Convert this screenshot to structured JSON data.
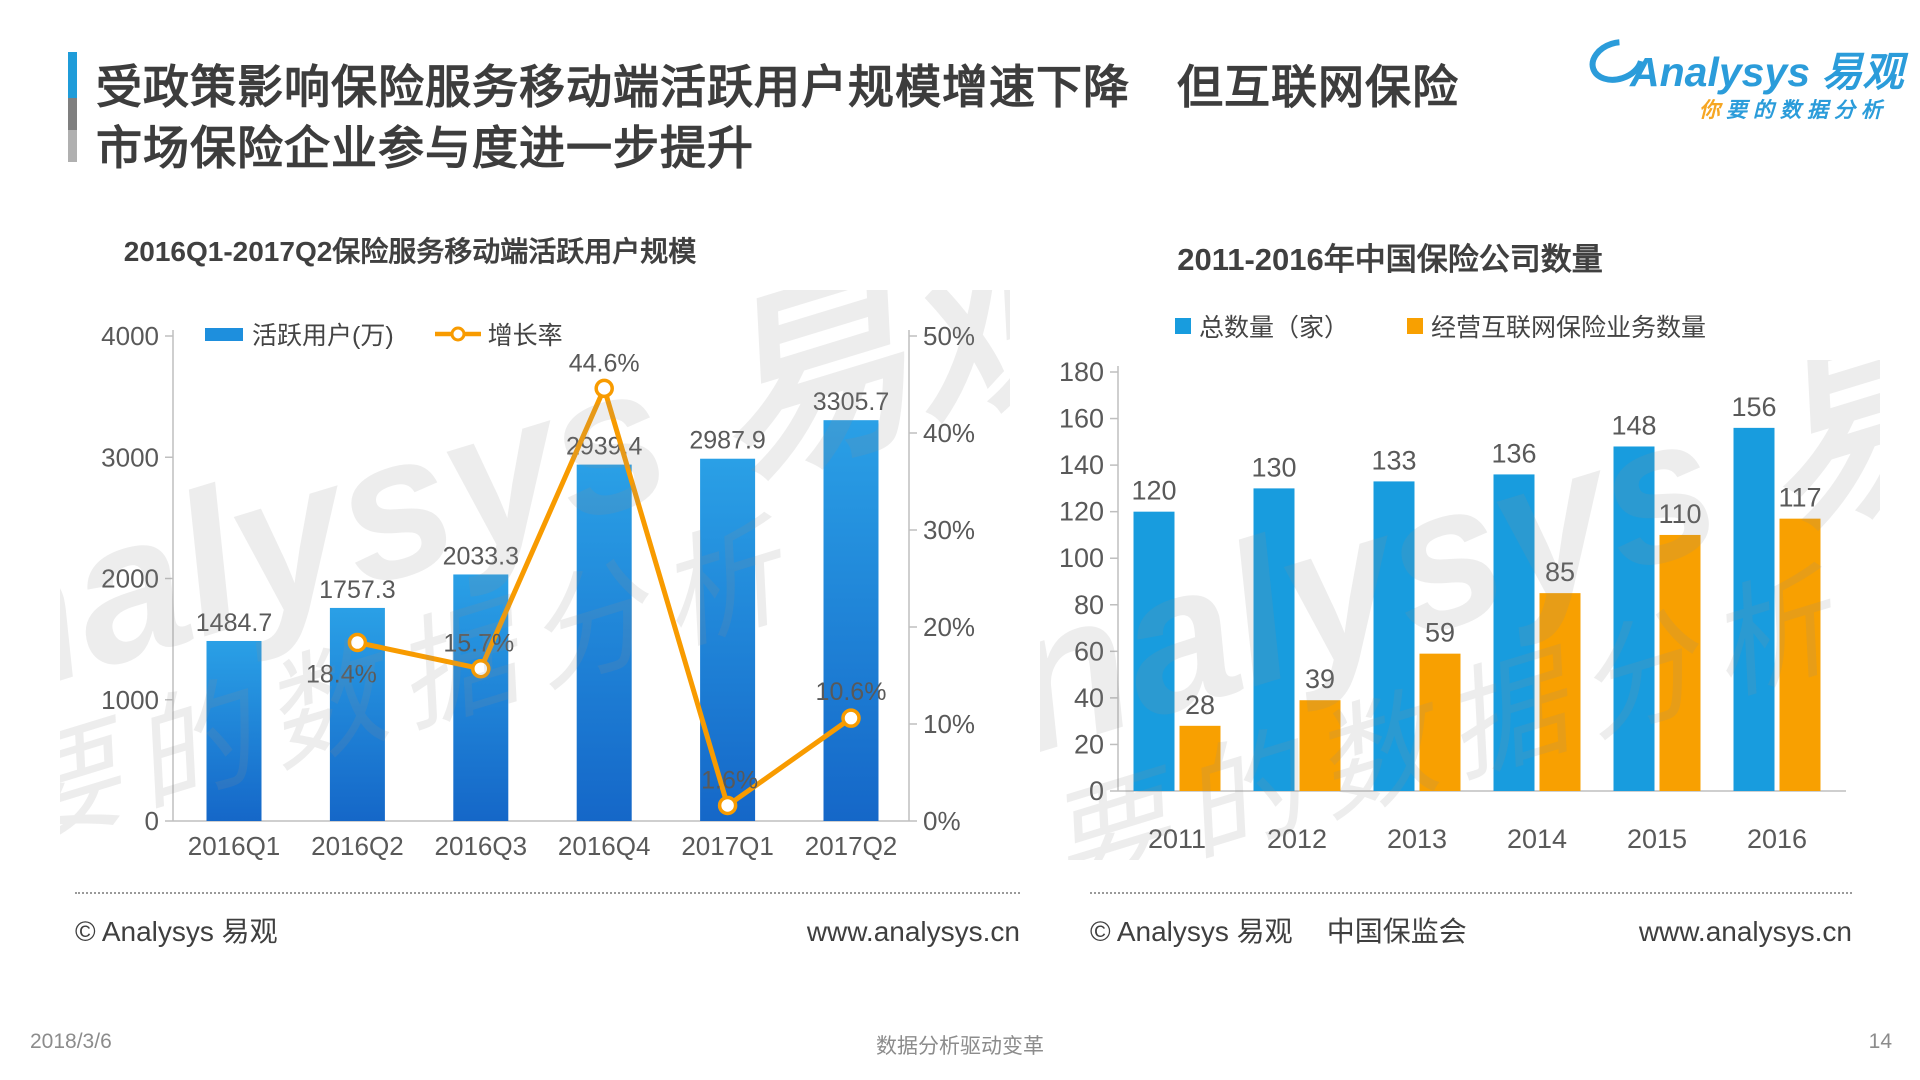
{
  "header": {
    "title_line1": "受政策影响保险服务移动端活跃用户规模增速下降　但互联网保险",
    "title_line2": "市场保险企业参与度进一步提升",
    "logo_brand": "Analysys 易观",
    "logo_tagline_first": "你",
    "logo_tagline_rest": "要的数据分析"
  },
  "watermark": {
    "line1": "Analysys 易观",
    "line2": "你要的数据分析"
  },
  "chart_data": [
    {
      "type": "bar",
      "title": "2016Q1-2017Q2保险服务移动端活跃用户规模",
      "categories": [
        "2016Q1",
        "2016Q2",
        "2016Q3",
        "2016Q4",
        "2017Q1",
        "2017Q2"
      ],
      "series": [
        {
          "name": "活跃用户(万)",
          "type": "bar",
          "values": [
            1484.7,
            1757.3,
            2033.3,
            2939.4,
            2987.9,
            3305.7
          ],
          "color": "#1E8FDD"
        },
        {
          "name": "增长率",
          "type": "line",
          "values": [
            null,
            18.4,
            15.7,
            44.6,
            1.6,
            10.6
          ],
          "unit": "%",
          "color": "#F89B00"
        }
      ],
      "left_axis": {
        "min": 0,
        "max": 4000,
        "ticks": [
          "0",
          "1000",
          "2000",
          "3000",
          "4000"
        ]
      },
      "right_axis": {
        "min": 0,
        "max": 50,
        "ticks": [
          "0%",
          "10%",
          "20%",
          "30%",
          "40%",
          "50%"
        ]
      },
      "legend_position": "top",
      "grid": false
    },
    {
      "type": "bar",
      "title": "2011-2016年中国保险公司数量",
      "categories": [
        "2011",
        "2012",
        "2013",
        "2014",
        "2015",
        "2016"
      ],
      "series": [
        {
          "name": "总数量（家）",
          "type": "bar",
          "values": [
            120,
            130,
            133,
            136,
            148,
            156
          ],
          "color": "#189CDE"
        },
        {
          "name": "经营互联网保险业务数量",
          "type": "bar",
          "values": [
            28,
            39,
            59,
            85,
            110,
            117
          ],
          "color": "#F8A001"
        }
      ],
      "y_axis": {
        "min": 0,
        "max": 180,
        "step": 20,
        "ticks": [
          "0",
          "20",
          "40",
          "60",
          "80",
          "100",
          "120",
          "140",
          "160",
          "180"
        ]
      },
      "legend_position": "top",
      "grid": false
    }
  ],
  "footer_left": {
    "attribution": "© Analysys 易观",
    "site": "www.analysys.cn"
  },
  "footer_right": {
    "attribution": "© Analysys 易观",
    "source": "中国保监会",
    "site": "www.analysys.cn"
  },
  "bottom_bar": {
    "date": "2018/3/6",
    "slogan": "数据分析驱动变革",
    "page": "14"
  }
}
